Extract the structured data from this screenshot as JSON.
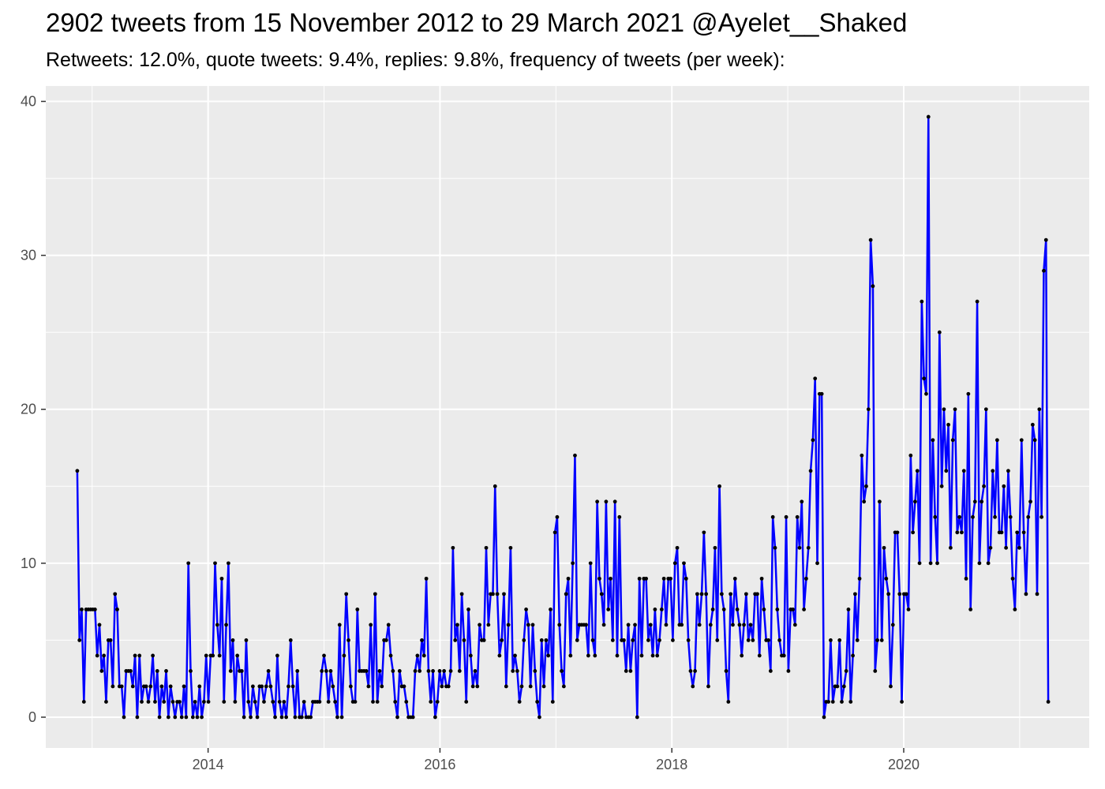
{
  "chart_data": {
    "type": "line",
    "title": "2902 tweets from 15 November 2012 to 29 March 2021 @Ayelet__Shaked",
    "subtitle": "Retweets: 12.0%, quote tweets: 9.4%, replies: 9.8%, frequency of tweets (per week):",
    "xlabel": "",
    "ylabel": "",
    "x_ticks": [
      2014,
      2016,
      2018,
      2020
    ],
    "y_ticks": [
      0,
      10,
      20,
      30,
      40
    ],
    "xlim": [
      2012.6,
      2021.6
    ],
    "ylim": [
      -2,
      41
    ],
    "grid": true,
    "legend": "none",
    "line_color": "#0000ff",
    "point_color": "#000000",
    "panel_background": "#ebebeb",
    "x_start": "2012-11-15",
    "x_step_days": 7,
    "series": [
      {
        "values": [
          16,
          5,
          7,
          1,
          7,
          7,
          7,
          7,
          7,
          4,
          6,
          3,
          4,
          1,
          5,
          5,
          2,
          8,
          7,
          2,
          2,
          0,
          3,
          3,
          3,
          2,
          4,
          0,
          4,
          1,
          2,
          2,
          1,
          2,
          4,
          1,
          3,
          0,
          2,
          1,
          3,
          0,
          2,
          1,
          0,
          1,
          1,
          0,
          2,
          0,
          10,
          3,
          0,
          1,
          0,
          2,
          0,
          1,
          4,
          1,
          4,
          4,
          10,
          6,
          4,
          9,
          1,
          6,
          10,
          3,
          5,
          1,
          4,
          3,
          3,
          0,
          5,
          1,
          0,
          2,
          1,
          0,
          2,
          2,
          1,
          2,
          3,
          2,
          1,
          0,
          4,
          1,
          0,
          1,
          0,
          2,
          5,
          2,
          0,
          3,
          0,
          0,
          1,
          0,
          0,
          0,
          1,
          1,
          1,
          1,
          3,
          4,
          3,
          1,
          3,
          2,
          1,
          0,
          6,
          0,
          4,
          8,
          5,
          2,
          1,
          1,
          7,
          3,
          3,
          3,
          3,
          2,
          6,
          1,
          8,
          1,
          3,
          2,
          5,
          5,
          6,
          4,
          3,
          1,
          0,
          3,
          2,
          2,
          1,
          0,
          0,
          0,
          3,
          4,
          3,
          5,
          4,
          9,
          3,
          1,
          3,
          0,
          1,
          3,
          2,
          3,
          2,
          2,
          3,
          11,
          5,
          6,
          3,
          8,
          5,
          1,
          7,
          4,
          2,
          3,
          2,
          6,
          5,
          5,
          11,
          6,
          8,
          8,
          15,
          8,
          4,
          5,
          8,
          2,
          6,
          11,
          3,
          4,
          3,
          1,
          2,
          5,
          7,
          6,
          2,
          6,
          3,
          1,
          0,
          5,
          2,
          5,
          4,
          7,
          1,
          12,
          13,
          6,
          3,
          2,
          8,
          9,
          4,
          10,
          17,
          5,
          6,
          6,
          6,
          6,
          4,
          10,
          5,
          4,
          14,
          9,
          8,
          6,
          14,
          7,
          9,
          5,
          14,
          4,
          13,
          5,
          5,
          3,
          6,
          3,
          5,
          6,
          0,
          9,
          4,
          9,
          9,
          5,
          6,
          4,
          7,
          4,
          5,
          7,
          9,
          6,
          9,
          9,
          5,
          10,
          11,
          6,
          6,
          10,
          9,
          5,
          3,
          2,
          3,
          8,
          6,
          8,
          12,
          8,
          2,
          6,
          7,
          11,
          5,
          15,
          8,
          7,
          3,
          1,
          8,
          6,
          9,
          7,
          6,
          4,
          6,
          8,
          5,
          6,
          5,
          8,
          8,
          4,
          9,
          7,
          5,
          5,
          3,
          13,
          11,
          7,
          5,
          4,
          4,
          13,
          3,
          7,
          7,
          6,
          13,
          11,
          14,
          7,
          9,
          11,
          16,
          18,
          22,
          10,
          21,
          21,
          0,
          1,
          1,
          5,
          1,
          2,
          2,
          5,
          1,
          2,
          3,
          7,
          1,
          4,
          8,
          5,
          9,
          17,
          14,
          15,
          20,
          31,
          28,
          3,
          5,
          14,
          5,
          11,
          9,
          8,
          2,
          6,
          12,
          12,
          8,
          1,
          8,
          8,
          7,
          17,
          12,
          14,
          16,
          10,
          27,
          22,
          21,
          39,
          10,
          18,
          13,
          10,
          25,
          15,
          20,
          16,
          19,
          11,
          18,
          20,
          12,
          13,
          12,
          16,
          9,
          21,
          7,
          13,
          14,
          27,
          10,
          14,
          15,
          20,
          10,
          11,
          16,
          13,
          18,
          12,
          12,
          15,
          11,
          16,
          13,
          9,
          7,
          12,
          11,
          18,
          12,
          8,
          13,
          14,
          19,
          18,
          8,
          20,
          13,
          29,
          31,
          1
        ]
      }
    ]
  }
}
